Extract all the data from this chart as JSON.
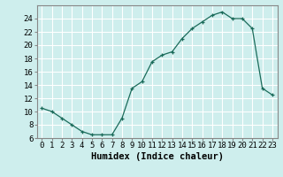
{
  "x": [
    0,
    1,
    2,
    3,
    4,
    5,
    6,
    7,
    8,
    9,
    10,
    11,
    12,
    13,
    14,
    15,
    16,
    17,
    18,
    19,
    20,
    21,
    22,
    23
  ],
  "y": [
    10.5,
    10.0,
    9.0,
    8.0,
    7.0,
    6.5,
    6.5,
    6.5,
    9.0,
    13.5,
    14.5,
    17.5,
    18.5,
    19.0,
    21.0,
    22.5,
    23.5,
    24.5,
    25.0,
    24.0,
    24.0,
    22.5,
    13.5,
    12.5
  ],
  "xlabel": "Humidex (Indice chaleur)",
  "ylim": [
    6,
    26
  ],
  "xlim": [
    -0.5,
    23.5
  ],
  "yticks": [
    6,
    8,
    10,
    12,
    14,
    16,
    18,
    20,
    22,
    24
  ],
  "xticks": [
    0,
    1,
    2,
    3,
    4,
    5,
    6,
    7,
    8,
    9,
    10,
    11,
    12,
    13,
    14,
    15,
    16,
    17,
    18,
    19,
    20,
    21,
    22,
    23
  ],
  "line_color": "#1a6b5a",
  "marker": "+",
  "bg_color": "#ceeeed",
  "grid_color": "#ffffff",
  "spine_color": "#888888",
  "tick_label_fontsize": 6.5,
  "xlabel_fontsize": 7.5
}
